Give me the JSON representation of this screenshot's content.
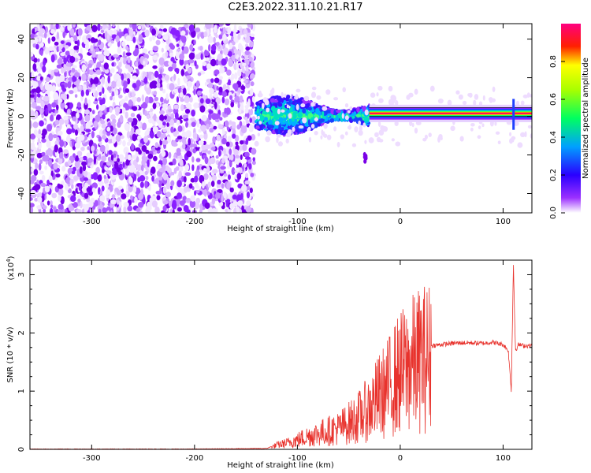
{
  "title": "C2E3.2022.311.10.21.R17",
  "chart_data": [
    {
      "type": "heatmap",
      "xlabel": "Height of straight line (km)",
      "ylabel": "Frequency (Hz)",
      "xlim": [
        -360,
        128
      ],
      "ylim": [
        -50,
        48
      ],
      "x_ticks": [
        -300,
        -200,
        -100,
        0,
        100
      ],
      "y_ticks": [
        -40,
        -20,
        0,
        20,
        40
      ],
      "colorbar": {
        "label": "Normalized spectral amplitude",
        "range": [
          0,
          1
        ],
        "ticks": [
          "0.0",
          "0.2",
          "0.4",
          "0.6",
          "0.8"
        ],
        "tick_values": [
          0,
          0.2,
          0.4,
          0.6,
          0.8
        ],
        "colors": [
          "#ffffff",
          "#7a00e6",
          "#0000ff",
          "#00c8ff",
          "#00ff00",
          "#ffff00",
          "#ff0000",
          "#ff0080"
        ]
      },
      "regions": [
        {
          "x_range": [
            -360,
            -142
          ],
          "freq_range": [
            -50,
            48
          ],
          "amplitude": "low noise (0.0–0.2)"
        },
        {
          "x_range": [
            -140,
            -30
          ],
          "freq_range": [
            -10,
            8
          ],
          "amplitude": "medium (0.2–0.5)"
        },
        {
          "x_range": [
            -30,
            128
          ],
          "freq_range": [
            -1,
            4
          ],
          "amplitude": "high (0.8–1.0)",
          "center_freq": 1.5
        }
      ]
    },
    {
      "type": "line",
      "xlabel": "Height of straight line (km)",
      "ylabel": "SNR (10 * v/v)",
      "y_multiplier_label": "(x10",
      "y_multiplier_exp": "4",
      "xlim": [
        -360,
        128
      ],
      "ylim": [
        0,
        3.25
      ],
      "x_ticks": [
        -300,
        -200,
        -100,
        0,
        100
      ],
      "y_ticks": [
        0,
        1,
        2,
        3
      ],
      "series": [
        {
          "color": "#e8332d",
          "x": [
            -360,
            -300,
            -200,
            -130,
            -120,
            -110,
            -100,
            -90,
            -80,
            -70,
            -60,
            -50,
            -40,
            -30,
            -25,
            -20,
            -15,
            -10,
            -5,
            0,
            10,
            20,
            30,
            40,
            50,
            60,
            70,
            80,
            90,
            100,
            105,
            108,
            110,
            112,
            115,
            120,
            128
          ],
          "y": [
            0.0,
            0.0,
            0.0,
            0.01,
            0.08,
            0.12,
            0.18,
            0.25,
            0.3,
            0.35,
            0.4,
            0.5,
            0.62,
            0.78,
            0.9,
            1.02,
            1.1,
            1.22,
            1.35,
            1.45,
            1.6,
            1.72,
            1.78,
            1.8,
            1.82,
            1.83,
            1.83,
            1.82,
            1.84,
            1.8,
            1.7,
            1.0,
            3.2,
            1.7,
            1.8,
            1.78,
            1.78
          ]
        }
      ]
    }
  ]
}
